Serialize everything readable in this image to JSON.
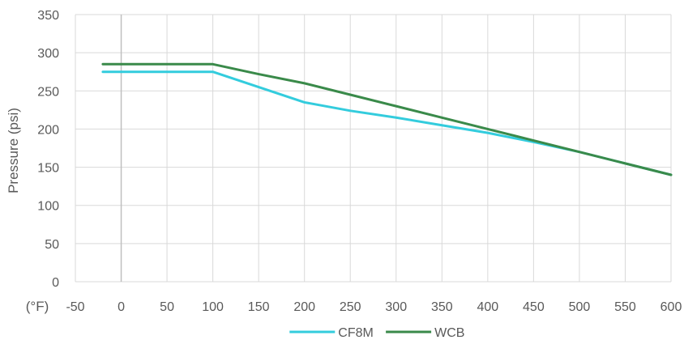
{
  "chart_data": {
    "type": "line",
    "title": "",
    "xlabel": "(°F)",
    "ylabel": "Pressure (psi)",
    "xlim": [
      -50,
      600
    ],
    "ylim": [
      0,
      350
    ],
    "x_ticks": [
      -50,
      0,
      50,
      100,
      150,
      200,
      250,
      300,
      350,
      400,
      450,
      500,
      550,
      600
    ],
    "y_ticks": [
      0,
      50,
      100,
      150,
      200,
      250,
      300,
      350
    ],
    "grid": true,
    "legend_position": "bottom",
    "series": [
      {
        "name": "CF8M",
        "color": "#33CCDD",
        "points": [
          [
            -20,
            275
          ],
          [
            100,
            275
          ],
          [
            150,
            255
          ],
          [
            200,
            235
          ],
          [
            250,
            224
          ],
          [
            300,
            215
          ],
          [
            350,
            205
          ],
          [
            400,
            195
          ],
          [
            450,
            183
          ],
          [
            500,
            170
          ],
          [
            550,
            155
          ],
          [
            600,
            140
          ]
        ]
      },
      {
        "name": "WCB",
        "color": "#3A8A4A",
        "points": [
          [
            -20,
            285
          ],
          [
            100,
            285
          ],
          [
            150,
            272
          ],
          [
            200,
            260
          ],
          [
            250,
            245
          ],
          [
            300,
            230
          ],
          [
            350,
            215
          ],
          [
            400,
            200
          ],
          [
            450,
            185
          ],
          [
            500,
            170
          ],
          [
            550,
            155
          ],
          [
            600,
            140
          ]
        ]
      }
    ]
  }
}
